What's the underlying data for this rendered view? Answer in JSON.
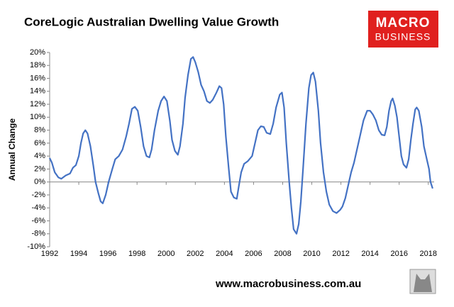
{
  "chart_data": {
    "type": "line",
    "title": "CoreLogic Australian Dwelling Value Growth",
    "ylabel": "Annual Change",
    "source": "www.macrobusiness.com.au",
    "logo": [
      "MACRO",
      "BUSINESS"
    ],
    "color": "#4472c4",
    "xlim": [
      1992,
      2018.4
    ],
    "xticks": [
      1992,
      1994,
      1996,
      1998,
      2000,
      2002,
      2004,
      2006,
      2008,
      2010,
      2012,
      2014,
      2016,
      2018
    ],
    "ylim": [
      -10,
      20
    ],
    "yticks": [
      {
        "value": -10,
        "label": "-10%"
      },
      {
        "value": -8,
        "label": "-8%"
      },
      {
        "value": -6,
        "label": "-6%"
      },
      {
        "value": -4,
        "label": "-4%"
      },
      {
        "value": -2,
        "label": "-2%"
      },
      {
        "value": 0,
        "label": "0%"
      },
      {
        "value": 2,
        "label": "2%"
      },
      {
        "value": 4,
        "label": "4%"
      },
      {
        "value": 6,
        "label": "6%"
      },
      {
        "value": 8,
        "label": "8%"
      },
      {
        "value": 10,
        "label": "10%"
      },
      {
        "value": 12,
        "label": "12%"
      },
      {
        "value": 14,
        "label": "14%"
      },
      {
        "value": 16,
        "label": "16%"
      },
      {
        "value": 18,
        "label": "18%"
      },
      {
        "value": 20,
        "label": "20%"
      }
    ],
    "x": [
      1992.0,
      1992.15,
      1992.35,
      1992.6,
      1992.8,
      1993.1,
      1993.4,
      1993.6,
      1993.8,
      1994.0,
      1994.15,
      1994.3,
      1994.45,
      1994.6,
      1994.8,
      1995.0,
      1995.15,
      1995.35,
      1995.5,
      1995.65,
      1995.85,
      1996.05,
      1996.3,
      1996.5,
      1996.75,
      1997.0,
      1997.25,
      1997.45,
      1997.65,
      1997.85,
      1998.05,
      1998.25,
      1998.45,
      1998.65,
      1998.85,
      1999.0,
      1999.2,
      1999.45,
      1999.65,
      1999.85,
      2000.05,
      2000.25,
      2000.4,
      2000.6,
      2000.8,
      2000.95,
      2001.15,
      2001.3,
      2001.5,
      2001.7,
      2001.85,
      2002.0,
      2002.2,
      2002.4,
      2002.6,
      2002.8,
      2003.0,
      2003.2,
      2003.45,
      2003.65,
      2003.8,
      2003.95,
      2004.1,
      2004.3,
      2004.45,
      2004.65,
      2004.85,
      2005.0,
      2005.15,
      2005.35,
      2005.6,
      2005.9,
      2006.1,
      2006.3,
      2006.5,
      2006.7,
      2006.9,
      2007.15,
      2007.35,
      2007.55,
      2007.8,
      2007.95,
      2008.1,
      2008.25,
      2008.45,
      2008.6,
      2008.75,
      2008.95,
      2009.1,
      2009.25,
      2009.4,
      2009.6,
      2009.8,
      2009.95,
      2010.1,
      2010.25,
      2010.45,
      2010.6,
      2010.8,
      2011.0,
      2011.2,
      2011.45,
      2011.7,
      2011.95,
      2012.1,
      2012.3,
      2012.5,
      2012.7,
      2012.9,
      2013.1,
      2013.3,
      2013.55,
      2013.8,
      2014.0,
      2014.2,
      2014.4,
      2014.6,
      2014.8,
      2015.0,
      2015.15,
      2015.3,
      2015.45,
      2015.55,
      2015.7,
      2015.85,
      2016.0,
      2016.15,
      2016.3,
      2016.5,
      2016.65,
      2016.8,
      2016.95,
      2017.1,
      2017.2,
      2017.35,
      2017.55,
      2017.7,
      2017.9,
      2018.05,
      2018.15,
      2018.3
    ],
    "values": [
      3.7,
      3.0,
      1.5,
      0.7,
      0.5,
      1.0,
      1.3,
      2.2,
      2.6,
      4.0,
      6.0,
      7.5,
      8.0,
      7.5,
      5.5,
      2.5,
      0.0,
      -1.8,
      -3.0,
      -3.3,
      -2.0,
      0.0,
      2.0,
      3.5,
      4.0,
      5.0,
      7.0,
      9.0,
      11.3,
      11.6,
      11.0,
      8.5,
      5.5,
      4.0,
      3.8,
      5.0,
      8.0,
      11.0,
      12.5,
      13.2,
      12.5,
      9.5,
      6.5,
      4.8,
      4.2,
      5.5,
      9.0,
      13.0,
      16.5,
      19.0,
      19.3,
      18.5,
      17.0,
      15.0,
      14.0,
      12.5,
      12.2,
      12.7,
      13.8,
      14.8,
      14.5,
      12.0,
      7.0,
      2.0,
      -1.5,
      -2.4,
      -2.6,
      -0.5,
      1.5,
      2.8,
      3.2,
      4.0,
      6.0,
      8.0,
      8.6,
      8.5,
      7.6,
      7.4,
      9.0,
      11.5,
      13.5,
      13.8,
      11.5,
      6.0,
      0.0,
      -4.0,
      -7.3,
      -8.0,
      -6.5,
      -3.0,
      2.0,
      9.0,
      14.5,
      16.5,
      16.9,
      15.5,
      11.0,
      6.0,
      1.5,
      -1.5,
      -3.5,
      -4.5,
      -4.8,
      -4.3,
      -3.8,
      -2.5,
      -0.5,
      1.5,
      3.0,
      5.0,
      7.0,
      9.5,
      11.0,
      11.0,
      10.4,
      9.5,
      8.0,
      7.3,
      7.2,
      8.5,
      11.0,
      12.5,
      12.9,
      11.8,
      10.0,
      7.0,
      4.0,
      2.7,
      2.2,
      3.5,
      6.5,
      9.0,
      11.2,
      11.5,
      11.0,
      8.5,
      5.5,
      3.5,
      2.0,
      0.0,
      -1.0
    ]
  }
}
